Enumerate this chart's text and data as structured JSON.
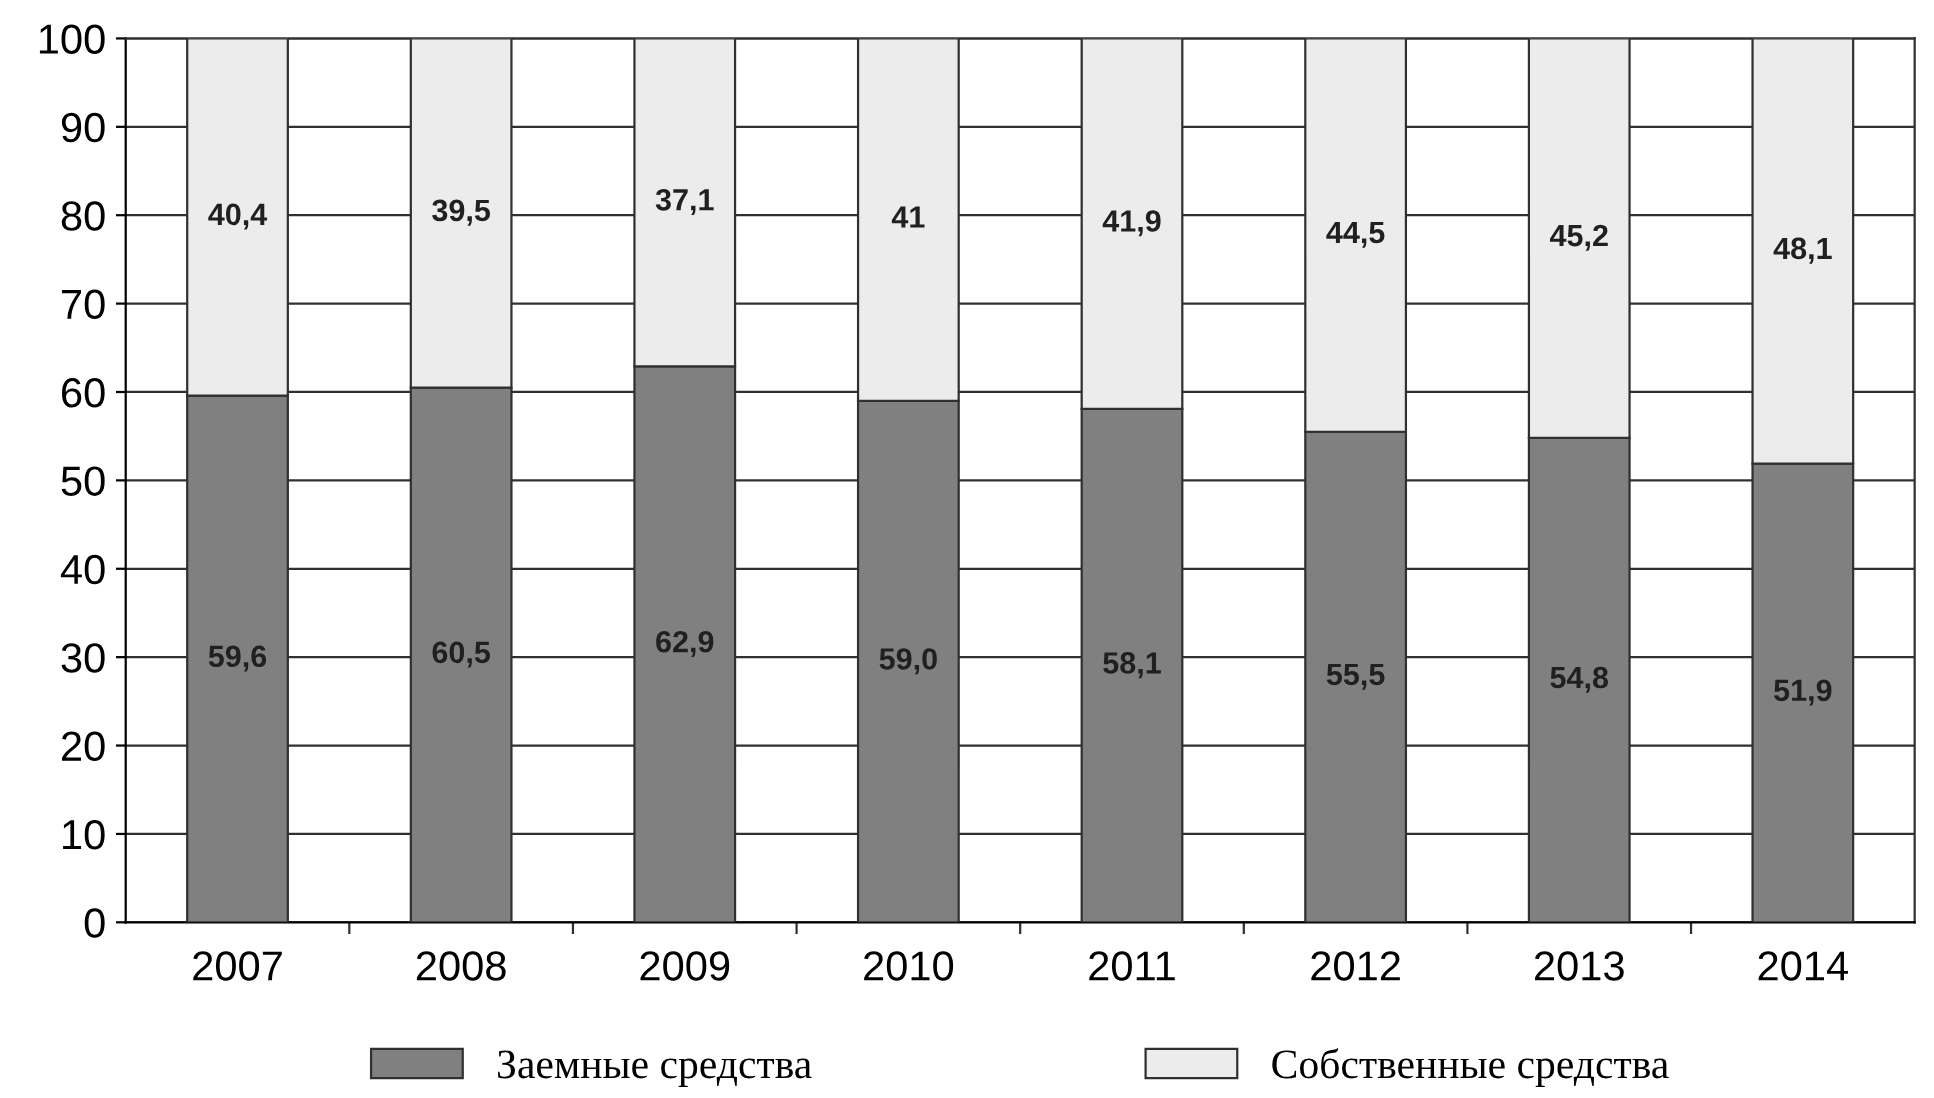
{
  "chart_data": {
    "type": "bar",
    "stacked": true,
    "categories": [
      "2007",
      "2008",
      "2009",
      "2010",
      "2011",
      "2012",
      "2013",
      "2014"
    ],
    "series": [
      {
        "name": "Заемные средства",
        "color": "#808080",
        "values": [
          59.6,
          60.5,
          62.9,
          59.0,
          58.1,
          55.5,
          54.8,
          51.9
        ],
        "value_labels": [
          "59,6",
          "60,5",
          "62,9",
          "59,0",
          "58,1",
          "55,5",
          "54,8",
          "51,9"
        ]
      },
      {
        "name": "Собственные средства",
        "color": "#ececec",
        "values": [
          40.4,
          39.5,
          37.1,
          41,
          41.9,
          44.5,
          45.2,
          48.1
        ],
        "value_labels": [
          "40,4",
          "39,5",
          "37,1",
          "41",
          "41,9",
          "44,5",
          "45,2",
          "48,1"
        ]
      }
    ],
    "ylim": [
      0,
      100
    ],
    "yticks": [
      0,
      10,
      20,
      30,
      40,
      50,
      60,
      70,
      80,
      90,
      100
    ],
    "grid": "y",
    "legend": "bottom"
  }
}
